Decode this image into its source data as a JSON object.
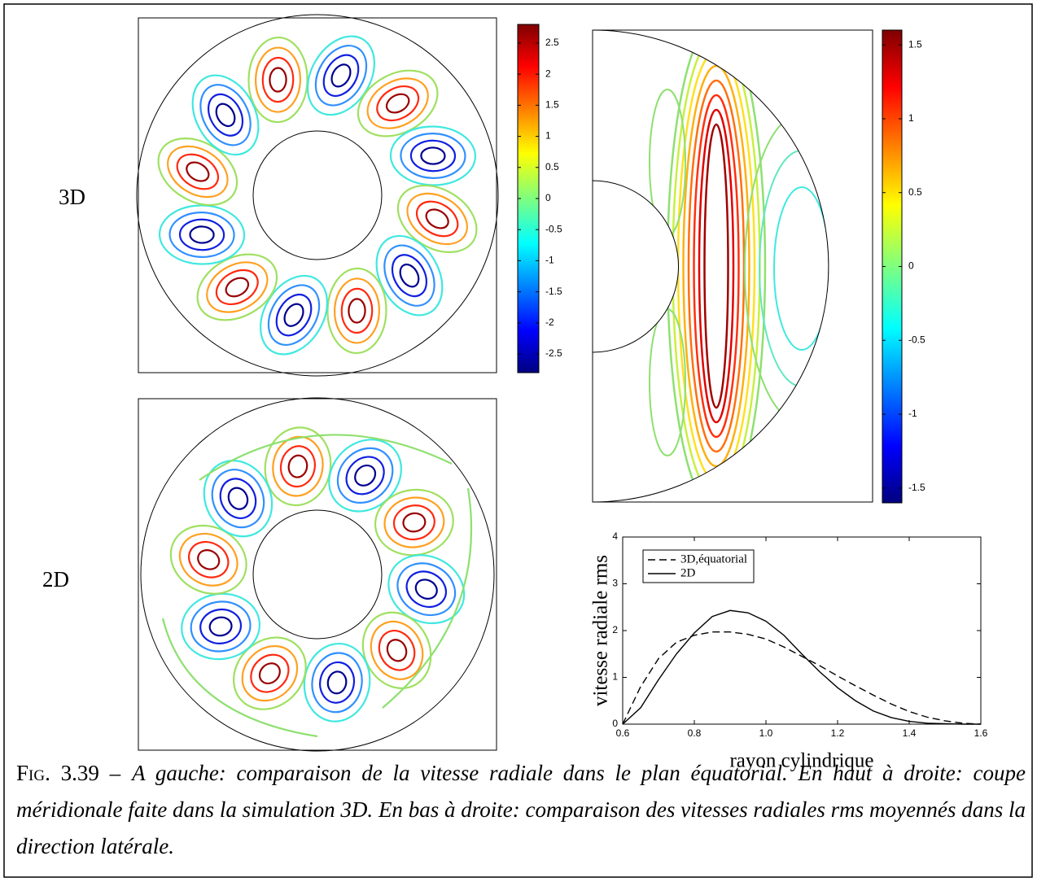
{
  "row_labels": [
    "3D",
    "2D"
  ],
  "colorbars": [
    {
      "lim": [
        -2.8,
        2.8
      ],
      "ticks": [
        -2.5,
        -2,
        -1.5,
        -1,
        -0.5,
        0,
        0.5,
        1,
        1.5,
        2,
        2.5
      ]
    },
    {
      "lim": [
        -1.6,
        1.6
      ],
      "ticks": [
        -1.5,
        -1,
        -0.5,
        0,
        0.5,
        1,
        1.5
      ]
    }
  ],
  "chart_data": {
    "type": "line",
    "xlabel": "rayon cylindrique",
    "ylabel": "vitesse radiale rms",
    "x": [
      0.6,
      0.65,
      0.7,
      0.75,
      0.8,
      0.85,
      0.9,
      0.95,
      1.0,
      1.05,
      1.1,
      1.15,
      1.2,
      1.25,
      1.3,
      1.35,
      1.4,
      1.45,
      1.5,
      1.55,
      1.6
    ],
    "series": [
      {
        "name": "3D,équatorial",
        "color": "#000000",
        "dashed": true,
        "values": [
          0,
          0.8,
          1.4,
          1.75,
          1.9,
          1.97,
          1.97,
          1.92,
          1.82,
          1.65,
          1.45,
          1.25,
          1.03,
          0.82,
          0.62,
          0.43,
          0.27,
          0.15,
          0.07,
          0.02,
          0
        ]
      },
      {
        "name": "2D",
        "color": "#000000",
        "dashed": false,
        "values": [
          0,
          0.35,
          0.95,
          1.5,
          1.95,
          2.3,
          2.43,
          2.38,
          2.2,
          1.9,
          1.5,
          1.12,
          0.78,
          0.5,
          0.28,
          0.14,
          0.06,
          0.02,
          0.01,
          0,
          0
        ]
      }
    ],
    "xlim": [
      0.6,
      1.6
    ],
    "xticks": [
      0.6,
      0.8,
      {
        "value": 1,
        "label": "1.0"
      },
      1.2,
      1.4,
      1.6
    ],
    "ylim": [
      0,
      4
    ],
    "yticks": [
      0,
      1,
      2,
      3,
      4
    ],
    "legend": "upper left"
  },
  "caption": {
    "label": "Fig. 3.39 –",
    "text": "A gauche: comparaison de la vitesse radiale dans le plan équatorial. En haut à droite: coupe méridionale faite dans la simulation 3D. En bas à droite: comparaison des vitesses radiales rms moyennés dans la direction latérale."
  }
}
